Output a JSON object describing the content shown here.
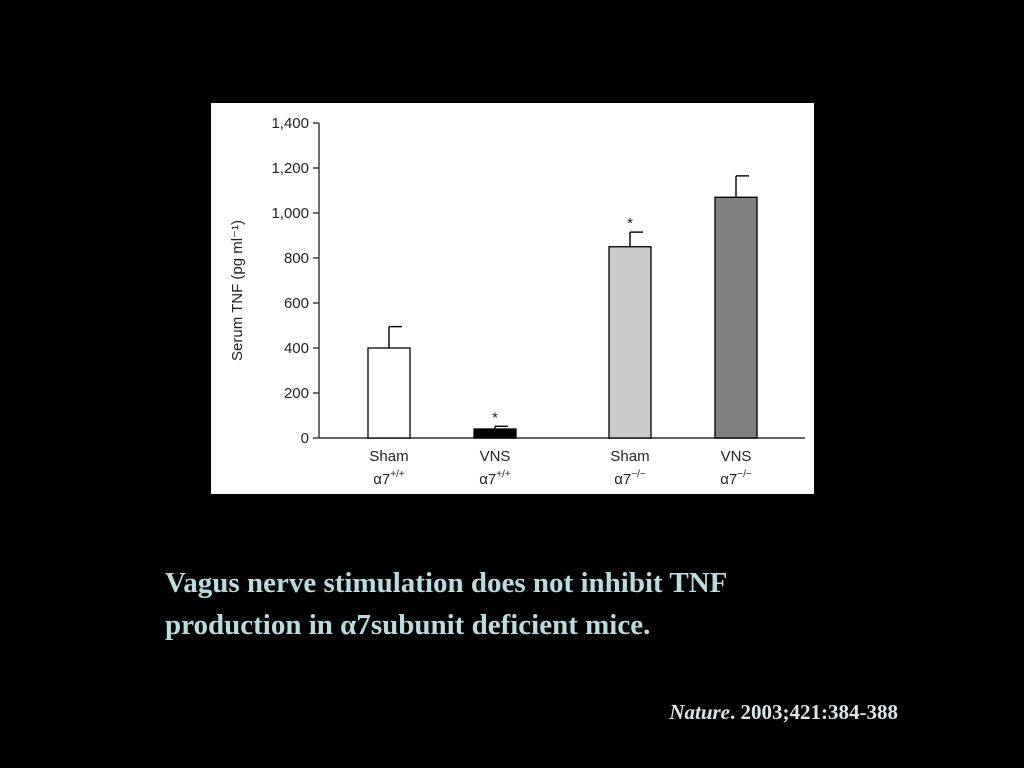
{
  "caption": {
    "line1": "Vagus nerve stimulation does not inhibit TNF",
    "line2_prefix": "production in ",
    "line2_alpha": "α",
    "line2_suffix": "7subunit deficient mice."
  },
  "citation": {
    "journal": "Nature",
    "details": ". 2003;421:384-388"
  },
  "chart_data": {
    "type": "bar",
    "title": "",
    "ylabel": "Serum TNF (pg ml⁻¹)",
    "xlabel": "",
    "ylim": [
      0,
      1400
    ],
    "yticks": [
      0,
      200,
      400,
      600,
      800,
      1000,
      1200,
      1400
    ],
    "ytick_labels": [
      "0",
      "200",
      "400",
      "600",
      "800",
      "1,000",
      "1,200",
      "1,400"
    ],
    "categories": [
      {
        "name": "Sham",
        "genotype": "α7",
        "sup": "+/+"
      },
      {
        "name": "VNS",
        "genotype": "α7",
        "sup": "+/+"
      },
      {
        "name": "Sham",
        "genotype": "α7",
        "sup": "−/−"
      },
      {
        "name": "VNS",
        "genotype": "α7",
        "sup": "−/−"
      }
    ],
    "values": [
      400,
      40,
      850,
      1070
    ],
    "errors": [
      95,
      12,
      65,
      95
    ],
    "significance": [
      "",
      "*",
      "*",
      ""
    ],
    "bar_colors": [
      "#ffffff",
      "#000000",
      "#cccccc",
      "#808080"
    ]
  }
}
